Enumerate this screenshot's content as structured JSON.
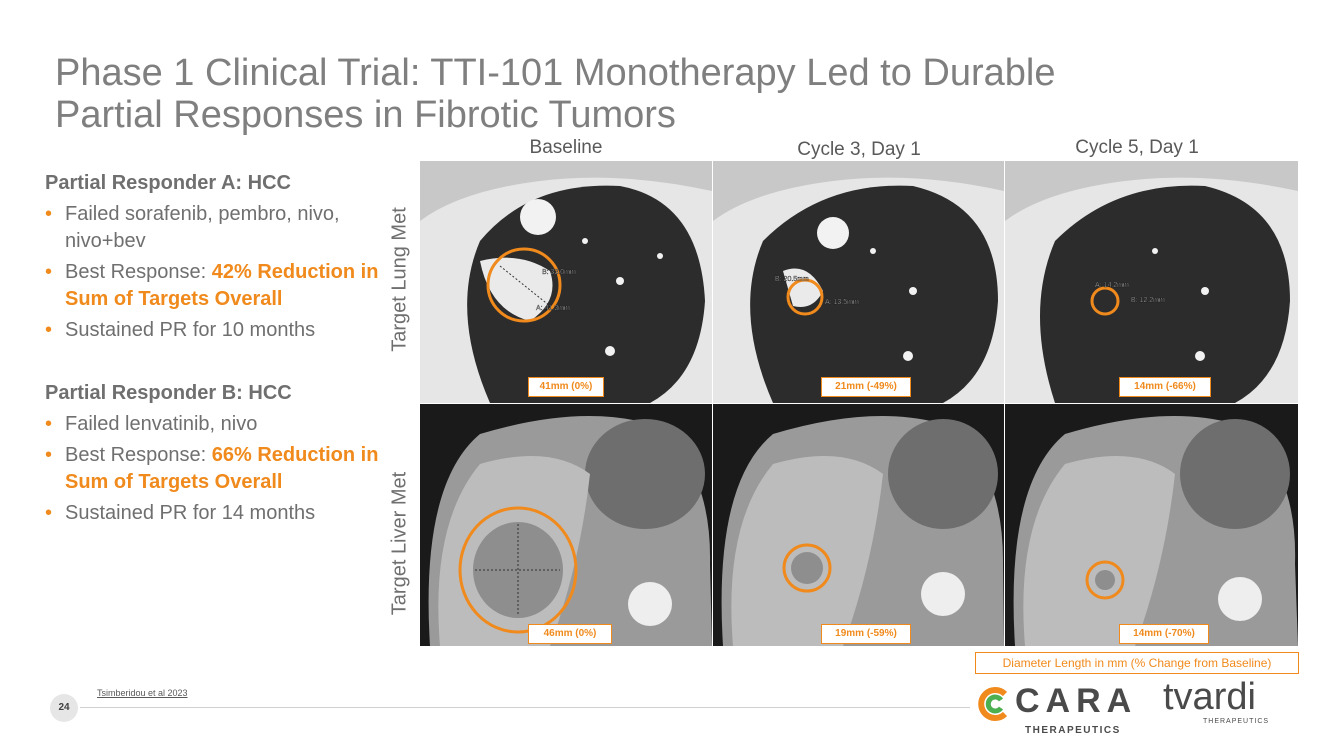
{
  "slide": {
    "title_line1": "Phase 1 Clinical Trial: TTI-101 Monotherapy Led to Durable",
    "title_line2": "Partial Responses in Fibrotic Tumors",
    "page_number": "24",
    "citation": "Tsimberidou et al 2023"
  },
  "responder_a": {
    "title": "Partial Responder A: HCC",
    "bullet1": "Failed sorafenib, pembro, nivo, nivo+bev",
    "bullet2_prefix": "Best Response: ",
    "bullet2_highlight": "42% Reduction in Sum of Targets Overall",
    "bullet3": "Sustained PR for 10 months"
  },
  "responder_b": {
    "title": "Partial Responder B: HCC",
    "bullet1": "Failed lenvatinib, nivo",
    "bullet2_prefix": "Best Response: ",
    "bullet2_highlight": "66% Reduction in Sum of Targets Overall",
    "bullet3": "Sustained PR for 14 months"
  },
  "columns": [
    "Baseline",
    "Cycle 3, Day 1",
    "Cycle 5, Day 1"
  ],
  "rows": [
    "Target Lung Met",
    "Target Liver Met"
  ],
  "lung_captions": [
    "41mm (0%)",
    "21mm (-49%)",
    "14mm (-66%)"
  ],
  "liver_captions": [
    "46mm (0%)",
    "19mm (-59%)",
    "14mm (-70%)"
  ],
  "lung_measures": [
    [
      "B: 33.0mm",
      "A: 41.3mm"
    ],
    [
      "B: 20.5mm",
      "A: 13.5mm"
    ],
    [
      "A: 14.2mm",
      "B: 12.2mm"
    ]
  ],
  "legend": "Diameter Length in mm (% Change from Baseline)",
  "logos": {
    "cara": "CARA",
    "cara_sub": "THERAPEUTICS",
    "tvardi": "tvardi",
    "tvardi_sub": "THERAPEUTICS"
  },
  "colors": {
    "accent": "#f08a1c",
    "text_gray": "#6f6f6f"
  }
}
